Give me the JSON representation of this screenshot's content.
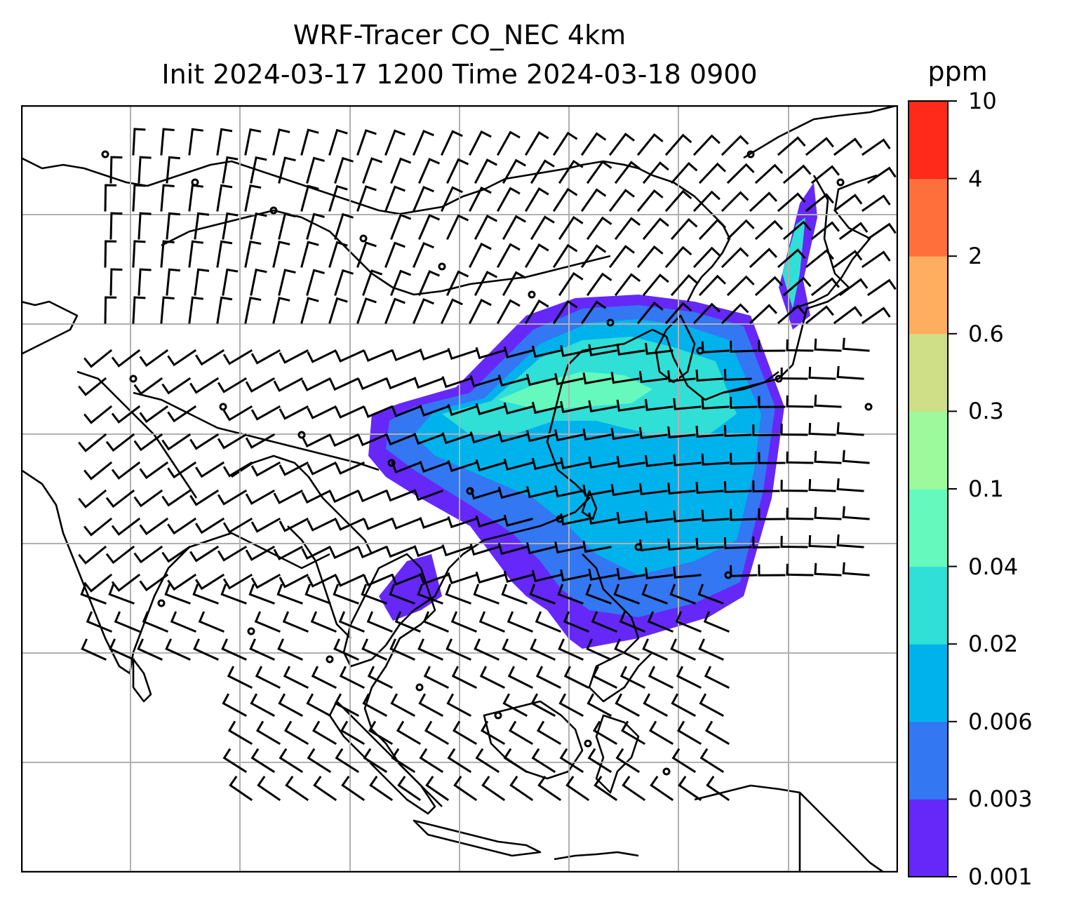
{
  "title": {
    "line1": "WRF-Tracer CO_NEC 4km",
    "line2": "Init 2024-03-17 1200 Time 2024-03-18 0900"
  },
  "colorbar": {
    "unit": "ppm",
    "levels": [
      "0.001",
      "0.003",
      "0.006",
      "0.02",
      "0.04",
      "0.1",
      "0.3",
      "0.6",
      "2",
      "4",
      "10"
    ],
    "colors": [
      "#6528f8",
      "#3377f2",
      "#00b2ec",
      "#30dfd6",
      "#66f9be",
      "#9cfa9c",
      "#cfdf87",
      "#ffae60",
      "#ff6f3c",
      "#ff2a19"
    ]
  },
  "map": {
    "gridlines": true,
    "plume_colors": {
      "outer": "#6528f8",
      "mid": "#3377f2",
      "inner": "#00b2ec",
      "core": "#30dfd6",
      "peak": "#66f9be"
    },
    "coastline_color": "#000000",
    "grid_color": "#b0b0b0"
  }
}
